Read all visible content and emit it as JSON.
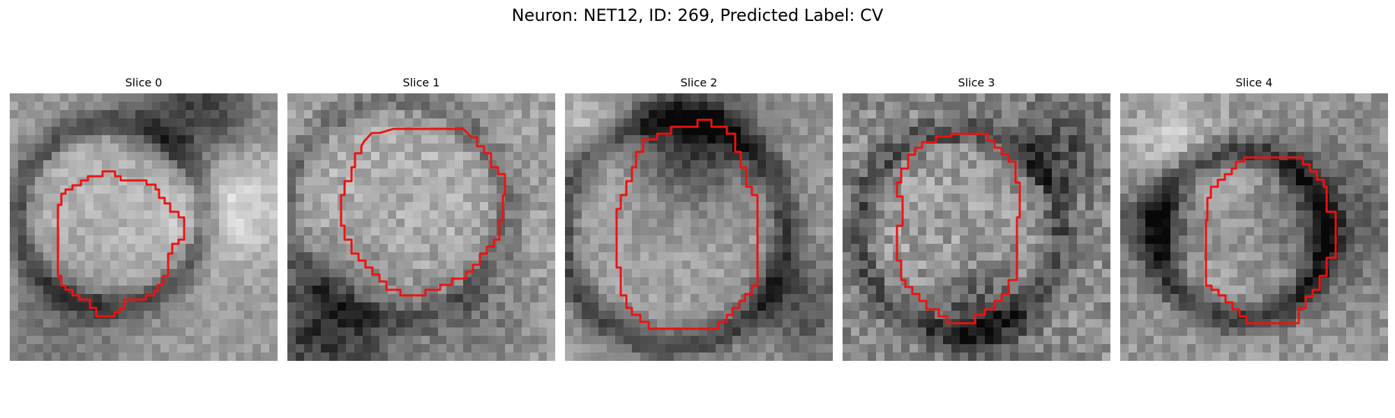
{
  "figure": {
    "title": "Neuron: NET12, ID: 269, Predicted Label: CV",
    "contour_color": "#ee1111"
  },
  "slices": [
    {
      "title": "Slice 0"
    },
    {
      "title": "Slice 1"
    },
    {
      "title": "Slice 2"
    },
    {
      "title": "Slice 3"
    },
    {
      "title": "Slice 4"
    }
  ]
}
